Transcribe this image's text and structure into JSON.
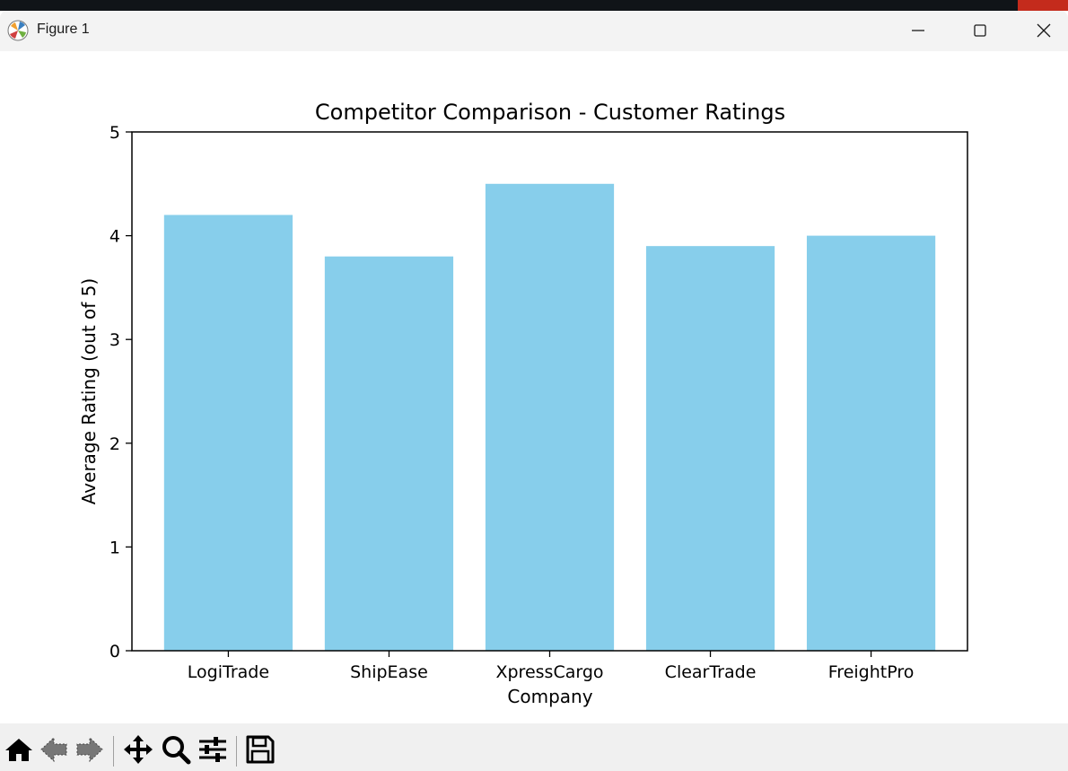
{
  "window": {
    "title": "Figure 1"
  },
  "toolbar": {
    "buttons": [
      "home-icon",
      "back-icon",
      "forward-icon",
      "pan-icon",
      "zoom-icon",
      "configure-icon",
      "save-icon"
    ]
  },
  "colors": {
    "bar": "#87CEEB",
    "axes": "#000000"
  },
  "chart_data": {
    "type": "bar",
    "title": "Competitor Comparison - Customer Ratings",
    "xlabel": "Company",
    "ylabel": "Average Rating (out of 5)",
    "categories": [
      "LogiTrade",
      "ShipEase",
      "XpressCargo",
      "ClearTrade",
      "FreightPro"
    ],
    "values": [
      4.2,
      3.8,
      4.5,
      3.9,
      4.0
    ],
    "ylim": [
      0,
      5
    ],
    "yticks": [
      "0",
      "1",
      "2",
      "3",
      "4",
      "5"
    ],
    "grid": false,
    "legend": "none"
  }
}
